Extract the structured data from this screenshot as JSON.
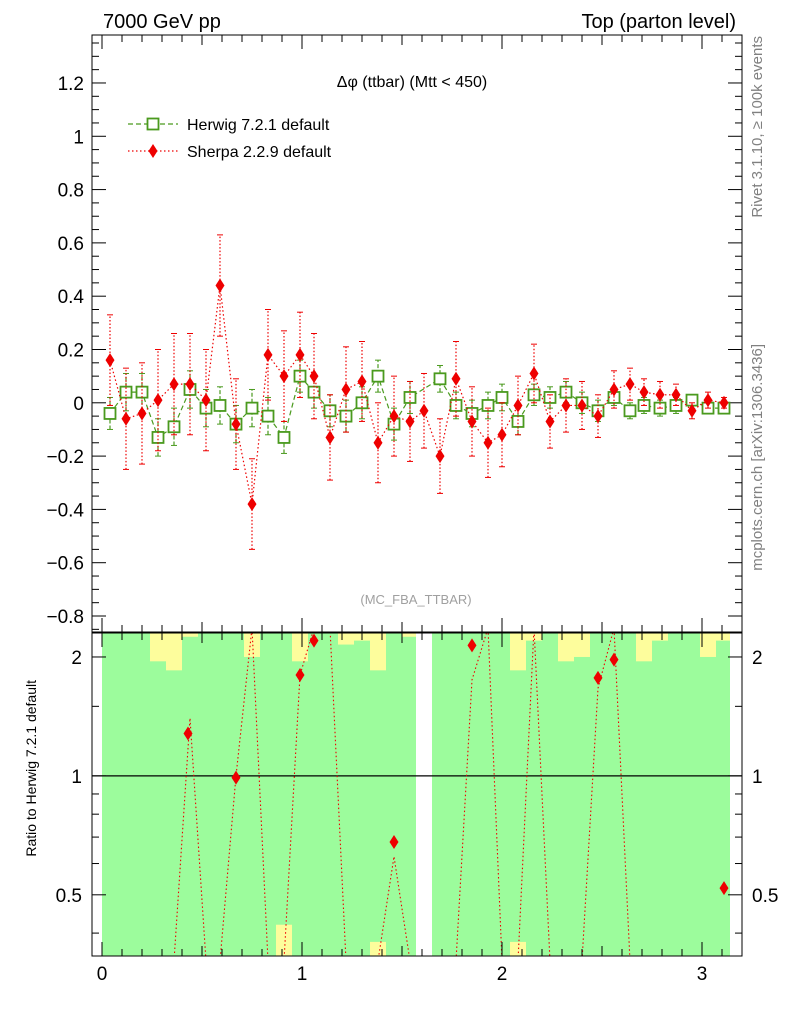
{
  "header": {
    "left": "7000 GeV pp",
    "right": "Top (parton level)"
  },
  "side_labels": {
    "rivet": "Rivet 3.1.10, ≥ 100k events",
    "mcplots": "mcplots.cern.ch [arXiv:1306.3436]"
  },
  "chart_data": [
    {
      "type": "scatter",
      "panel": "main",
      "title": "Δφ (ttbar) (Mtt < 450)",
      "watermark": "(MC_FBA_TTBAR)",
      "xlabel": "",
      "ylabel": "",
      "xlim": [
        -0.05,
        3.2
      ],
      "ylim": [
        -0.86,
        1.38
      ],
      "x_ticks": [
        "0",
        "1",
        "2",
        "3"
      ],
      "y_ticks": [
        "−0.8",
        "−0.6",
        "−0.4",
        "−0.2",
        "0",
        "0.2",
        "0.4",
        "0.6",
        "0.8",
        "1",
        "1.2"
      ],
      "legend_position": "top-left",
      "series": [
        {
          "name": "Herwig 7.2.1 default",
          "color": "#4a9a1e",
          "marker": "open-square",
          "line": "dashed",
          "x": [
            0.04,
            0.12,
            0.2,
            0.28,
            0.36,
            0.44,
            0.52,
            0.59,
            0.67,
            0.75,
            0.83,
            0.91,
            0.99,
            1.06,
            1.14,
            1.22,
            1.3,
            1.38,
            1.46,
            1.54,
            1.69,
            1.77,
            1.85,
            1.93,
            2.0,
            2.08,
            2.16,
            2.24,
            2.32,
            2.4,
            2.48,
            2.56,
            2.64,
            2.71,
            2.79,
            2.87,
            2.95,
            3.03,
            3.11
          ],
          "y": [
            -0.04,
            0.04,
            0.04,
            -0.13,
            -0.09,
            0.05,
            -0.02,
            -0.01,
            -0.08,
            -0.02,
            -0.05,
            -0.13,
            0.1,
            0.04,
            -0.03,
            -0.05,
            0.0,
            0.1,
            -0.08,
            0.02,
            0.09,
            -0.01,
            -0.04,
            -0.01,
            0.02,
            -0.07,
            0.03,
            0.02,
            0.04,
            0.0,
            -0.03,
            0.02,
            -0.03,
            -0.01,
            -0.02,
            -0.01,
            0.01,
            -0.02,
            -0.02
          ],
          "err": [
            0.06,
            0.07,
            0.07,
            0.07,
            0.07,
            0.07,
            0.07,
            0.07,
            0.07,
            0.07,
            0.07,
            0.06,
            0.06,
            0.06,
            0.06,
            0.06,
            0.06,
            0.06,
            0.06,
            0.06,
            0.05,
            0.05,
            0.05,
            0.05,
            0.05,
            0.05,
            0.04,
            0.04,
            0.04,
            0.04,
            0.04,
            0.03,
            0.03,
            0.03,
            0.03,
            0.03,
            0.02,
            0.02,
            0.02
          ]
        },
        {
          "name": "Sherpa 2.2.9 default",
          "color": "#ee0000",
          "marker": "filled-diamond",
          "line": "dotted",
          "x": [
            0.04,
            0.12,
            0.2,
            0.28,
            0.36,
            0.44,
            0.52,
            0.59,
            0.67,
            0.75,
            0.83,
            0.91,
            0.99,
            1.06,
            1.14,
            1.22,
            1.3,
            1.38,
            1.46,
            1.54,
            1.61,
            1.69,
            1.77,
            1.85,
            1.93,
            2.0,
            2.08,
            2.16,
            2.24,
            2.32,
            2.4,
            2.48,
            2.56,
            2.64,
            2.71,
            2.79,
            2.87,
            2.95,
            3.03,
            3.11
          ],
          "y": [
            0.16,
            -0.06,
            -0.04,
            0.01,
            0.07,
            0.07,
            0.01,
            0.44,
            -0.08,
            -0.38,
            0.18,
            0.1,
            0.18,
            0.1,
            -0.13,
            0.05,
            0.08,
            -0.15,
            -0.05,
            -0.07,
            -0.03,
            -0.2,
            0.09,
            -0.07,
            -0.15,
            -0.12,
            -0.01,
            0.11,
            -0.07,
            -0.01,
            -0.01,
            -0.05,
            0.05,
            0.07,
            0.04,
            0.03,
            0.03,
            -0.03,
            0.01,
            0.0
          ],
          "err": [
            0.17,
            0.19,
            0.19,
            0.19,
            0.19,
            0.19,
            0.19,
            0.19,
            0.17,
            0.17,
            0.17,
            0.17,
            0.16,
            0.16,
            0.16,
            0.16,
            0.15,
            0.15,
            0.15,
            0.15,
            0.14,
            0.14,
            0.14,
            0.13,
            0.13,
            0.12,
            0.11,
            0.11,
            0.1,
            0.1,
            0.09,
            0.08,
            0.07,
            0.06,
            0.05,
            0.05,
            0.04,
            0.03,
            0.03,
            0.02
          ]
        }
      ]
    },
    {
      "type": "line",
      "panel": "ratio",
      "ylabel": "Ratio to Herwig 7.2.1 default",
      "xlim": [
        -0.05,
        3.2
      ],
      "ylim": [
        0.35,
        2.3
      ],
      "y_ticks": [
        "0.5",
        "1",
        "2"
      ],
      "reference_line": 1,
      "bands": {
        "x_edges": [
          0.0,
          0.08,
          0.16,
          0.24,
          0.32,
          0.4,
          0.48,
          0.56,
          0.63,
          0.71,
          0.79,
          0.87,
          0.95,
          1.03,
          1.1,
          1.18,
          1.26,
          1.34,
          1.42,
          1.5,
          1.57,
          1.65,
          1.73,
          1.81,
          1.89,
          1.96,
          2.04,
          2.12,
          2.2,
          2.28,
          2.36,
          2.44,
          2.52,
          2.59,
          2.67,
          2.75,
          2.83,
          2.91,
          2.99,
          3.07,
          3.14
        ],
        "green_lower": [
          0.35,
          0.35,
          0.35,
          0.35,
          0.35,
          0.35,
          0.35,
          0.35,
          0.35,
          0.35,
          0.35,
          0.42,
          0.35,
          0.35,
          0.35,
          0.35,
          0.35,
          0.38,
          0.35,
          0.35,
          null,
          0.35,
          0.35,
          0.35,
          0.35,
          0.35,
          0.38,
          0.35,
          0.35,
          0.35,
          0.35,
          0.35,
          0.35,
          0.35,
          0.35,
          0.35,
          0.35,
          0.35,
          0.35,
          0.35
        ],
        "green_upper": [
          2.3,
          2.3,
          2.3,
          1.95,
          1.85,
          2.25,
          2.3,
          2.3,
          2.3,
          2.0,
          2.3,
          2.3,
          1.95,
          2.3,
          2.3,
          2.15,
          2.2,
          1.85,
          2.3,
          2.25,
          null,
          2.3,
          2.3,
          2.3,
          2.3,
          2.3,
          1.85,
          2.2,
          2.3,
          1.95,
          2.0,
          2.3,
          2.3,
          2.3,
          1.95,
          2.2,
          2.3,
          2.3,
          2.0,
          2.2
        ],
        "yellow_lower": [
          0.35,
          0.35,
          0.35,
          0.35,
          0.35,
          0.35,
          0.35,
          0.35,
          0.35,
          0.35,
          0.35,
          0.35,
          0.35,
          0.35,
          0.35,
          0.35,
          0.35,
          0.35,
          0.35,
          0.35,
          null,
          0.35,
          0.35,
          0.35,
          0.35,
          0.35,
          0.35,
          0.35,
          0.35,
          0.35,
          0.35,
          0.35,
          0.35,
          0.35,
          0.35,
          0.35,
          0.35,
          0.35,
          0.35,
          0.35
        ],
        "yellow_upper": [
          2.3,
          2.3,
          2.3,
          2.3,
          2.3,
          2.3,
          2.3,
          2.3,
          2.3,
          2.3,
          2.3,
          2.3,
          2.3,
          2.3,
          2.3,
          2.3,
          2.3,
          2.3,
          2.3,
          2.3,
          null,
          2.3,
          2.3,
          2.3,
          2.3,
          2.3,
          2.3,
          2.3,
          2.3,
          2.3,
          2.3,
          2.3,
          2.3,
          2.3,
          2.3,
          2.3,
          2.3,
          2.3,
          2.3,
          2.3
        ],
        "colors": {
          "green": "#9cfc9c",
          "yellow": "#fdfd9c"
        }
      },
      "series": [
        {
          "name": "Sherpa 2.2.9 default",
          "color": "#ee0000",
          "marker": "filled-diamond",
          "x": [
            0.43,
            0.67,
            0.99,
            1.06,
            1.46,
            1.85,
            2.48,
            2.56,
            3.11
          ],
          "y": [
            1.28,
            0.99,
            1.8,
            2.2,
            0.68,
            2.14,
            1.77,
            1.97,
            0.52
          ]
        }
      ]
    }
  ]
}
